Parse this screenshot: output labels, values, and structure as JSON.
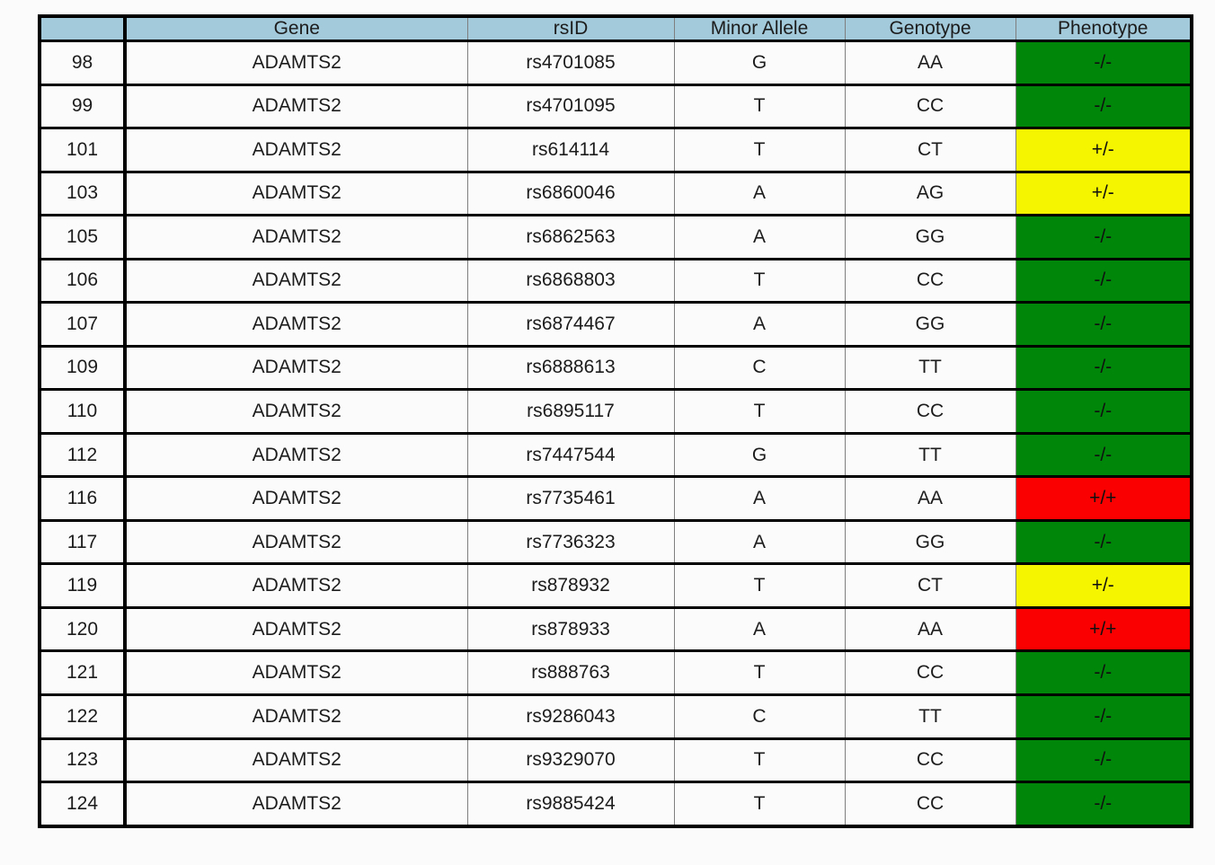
{
  "table": {
    "headers": [
      "",
      "Gene",
      "rsID",
      "Minor Allele",
      "Genotype",
      "Phenotype"
    ],
    "rows": [
      {
        "index": "98",
        "gene": "ADAMTS2",
        "rsid": "rs4701085",
        "minor_allele": "G",
        "genotype": "AA",
        "phenotype": "-/-",
        "phenotype_type": "negative"
      },
      {
        "index": "99",
        "gene": "ADAMTS2",
        "rsid": "rs4701095",
        "minor_allele": "T",
        "genotype": "CC",
        "phenotype": "-/-",
        "phenotype_type": "negative"
      },
      {
        "index": "101",
        "gene": "ADAMTS2",
        "rsid": "rs614114",
        "minor_allele": "T",
        "genotype": "CT",
        "phenotype": "+/-",
        "phenotype_type": "heterozygous"
      },
      {
        "index": "103",
        "gene": "ADAMTS2",
        "rsid": "rs6860046",
        "minor_allele": "A",
        "genotype": "AG",
        "phenotype": "+/-",
        "phenotype_type": "heterozygous"
      },
      {
        "index": "105",
        "gene": "ADAMTS2",
        "rsid": "rs6862563",
        "minor_allele": "A",
        "genotype": "GG",
        "phenotype": "-/-",
        "phenotype_type": "negative"
      },
      {
        "index": "106",
        "gene": "ADAMTS2",
        "rsid": "rs6868803",
        "minor_allele": "T",
        "genotype": "CC",
        "phenotype": "-/-",
        "phenotype_type": "negative"
      },
      {
        "index": "107",
        "gene": "ADAMTS2",
        "rsid": "rs6874467",
        "minor_allele": "A",
        "genotype": "GG",
        "phenotype": "-/-",
        "phenotype_type": "negative"
      },
      {
        "index": "109",
        "gene": "ADAMTS2",
        "rsid": "rs6888613",
        "minor_allele": "C",
        "genotype": "TT",
        "phenotype": "-/-",
        "phenotype_type": "negative"
      },
      {
        "index": "110",
        "gene": "ADAMTS2",
        "rsid": "rs6895117",
        "minor_allele": "T",
        "genotype": "CC",
        "phenotype": "-/-",
        "phenotype_type": "negative"
      },
      {
        "index": "112",
        "gene": "ADAMTS2",
        "rsid": "rs7447544",
        "minor_allele": "G",
        "genotype": "TT",
        "phenotype": "-/-",
        "phenotype_type": "negative"
      },
      {
        "index": "116",
        "gene": "ADAMTS2",
        "rsid": "rs7735461",
        "minor_allele": "A",
        "genotype": "AA",
        "phenotype": "+/+",
        "phenotype_type": "homozygous"
      },
      {
        "index": "117",
        "gene": "ADAMTS2",
        "rsid": "rs7736323",
        "minor_allele": "A",
        "genotype": "GG",
        "phenotype": "-/-",
        "phenotype_type": "negative"
      },
      {
        "index": "119",
        "gene": "ADAMTS2",
        "rsid": "rs878932",
        "minor_allele": "T",
        "genotype": "CT",
        "phenotype": "+/-",
        "phenotype_type": "heterozygous"
      },
      {
        "index": "120",
        "gene": "ADAMTS2",
        "rsid": "rs878933",
        "minor_allele": "A",
        "genotype": "AA",
        "phenotype": "+/+",
        "phenotype_type": "homozygous"
      },
      {
        "index": "121",
        "gene": "ADAMTS2",
        "rsid": "rs888763",
        "minor_allele": "T",
        "genotype": "CC",
        "phenotype": "-/-",
        "phenotype_type": "negative"
      },
      {
        "index": "122",
        "gene": "ADAMTS2",
        "rsid": "rs9286043",
        "minor_allele": "C",
        "genotype": "TT",
        "phenotype": "-/-",
        "phenotype_type": "negative"
      },
      {
        "index": "123",
        "gene": "ADAMTS2",
        "rsid": "rs9329070",
        "minor_allele": "T",
        "genotype": "CC",
        "phenotype": "-/-",
        "phenotype_type": "negative"
      },
      {
        "index": "124",
        "gene": "ADAMTS2",
        "rsid": "rs9885424",
        "minor_allele": "T",
        "genotype": "CC",
        "phenotype": "-/-",
        "phenotype_type": "negative"
      }
    ]
  },
  "colors": {
    "header_bg": "#a3cadb",
    "negative": "#00870a",
    "heterozygous": "#f5f500",
    "homozygous": "#fb0000",
    "cell_bg": "#fbfbfb"
  }
}
